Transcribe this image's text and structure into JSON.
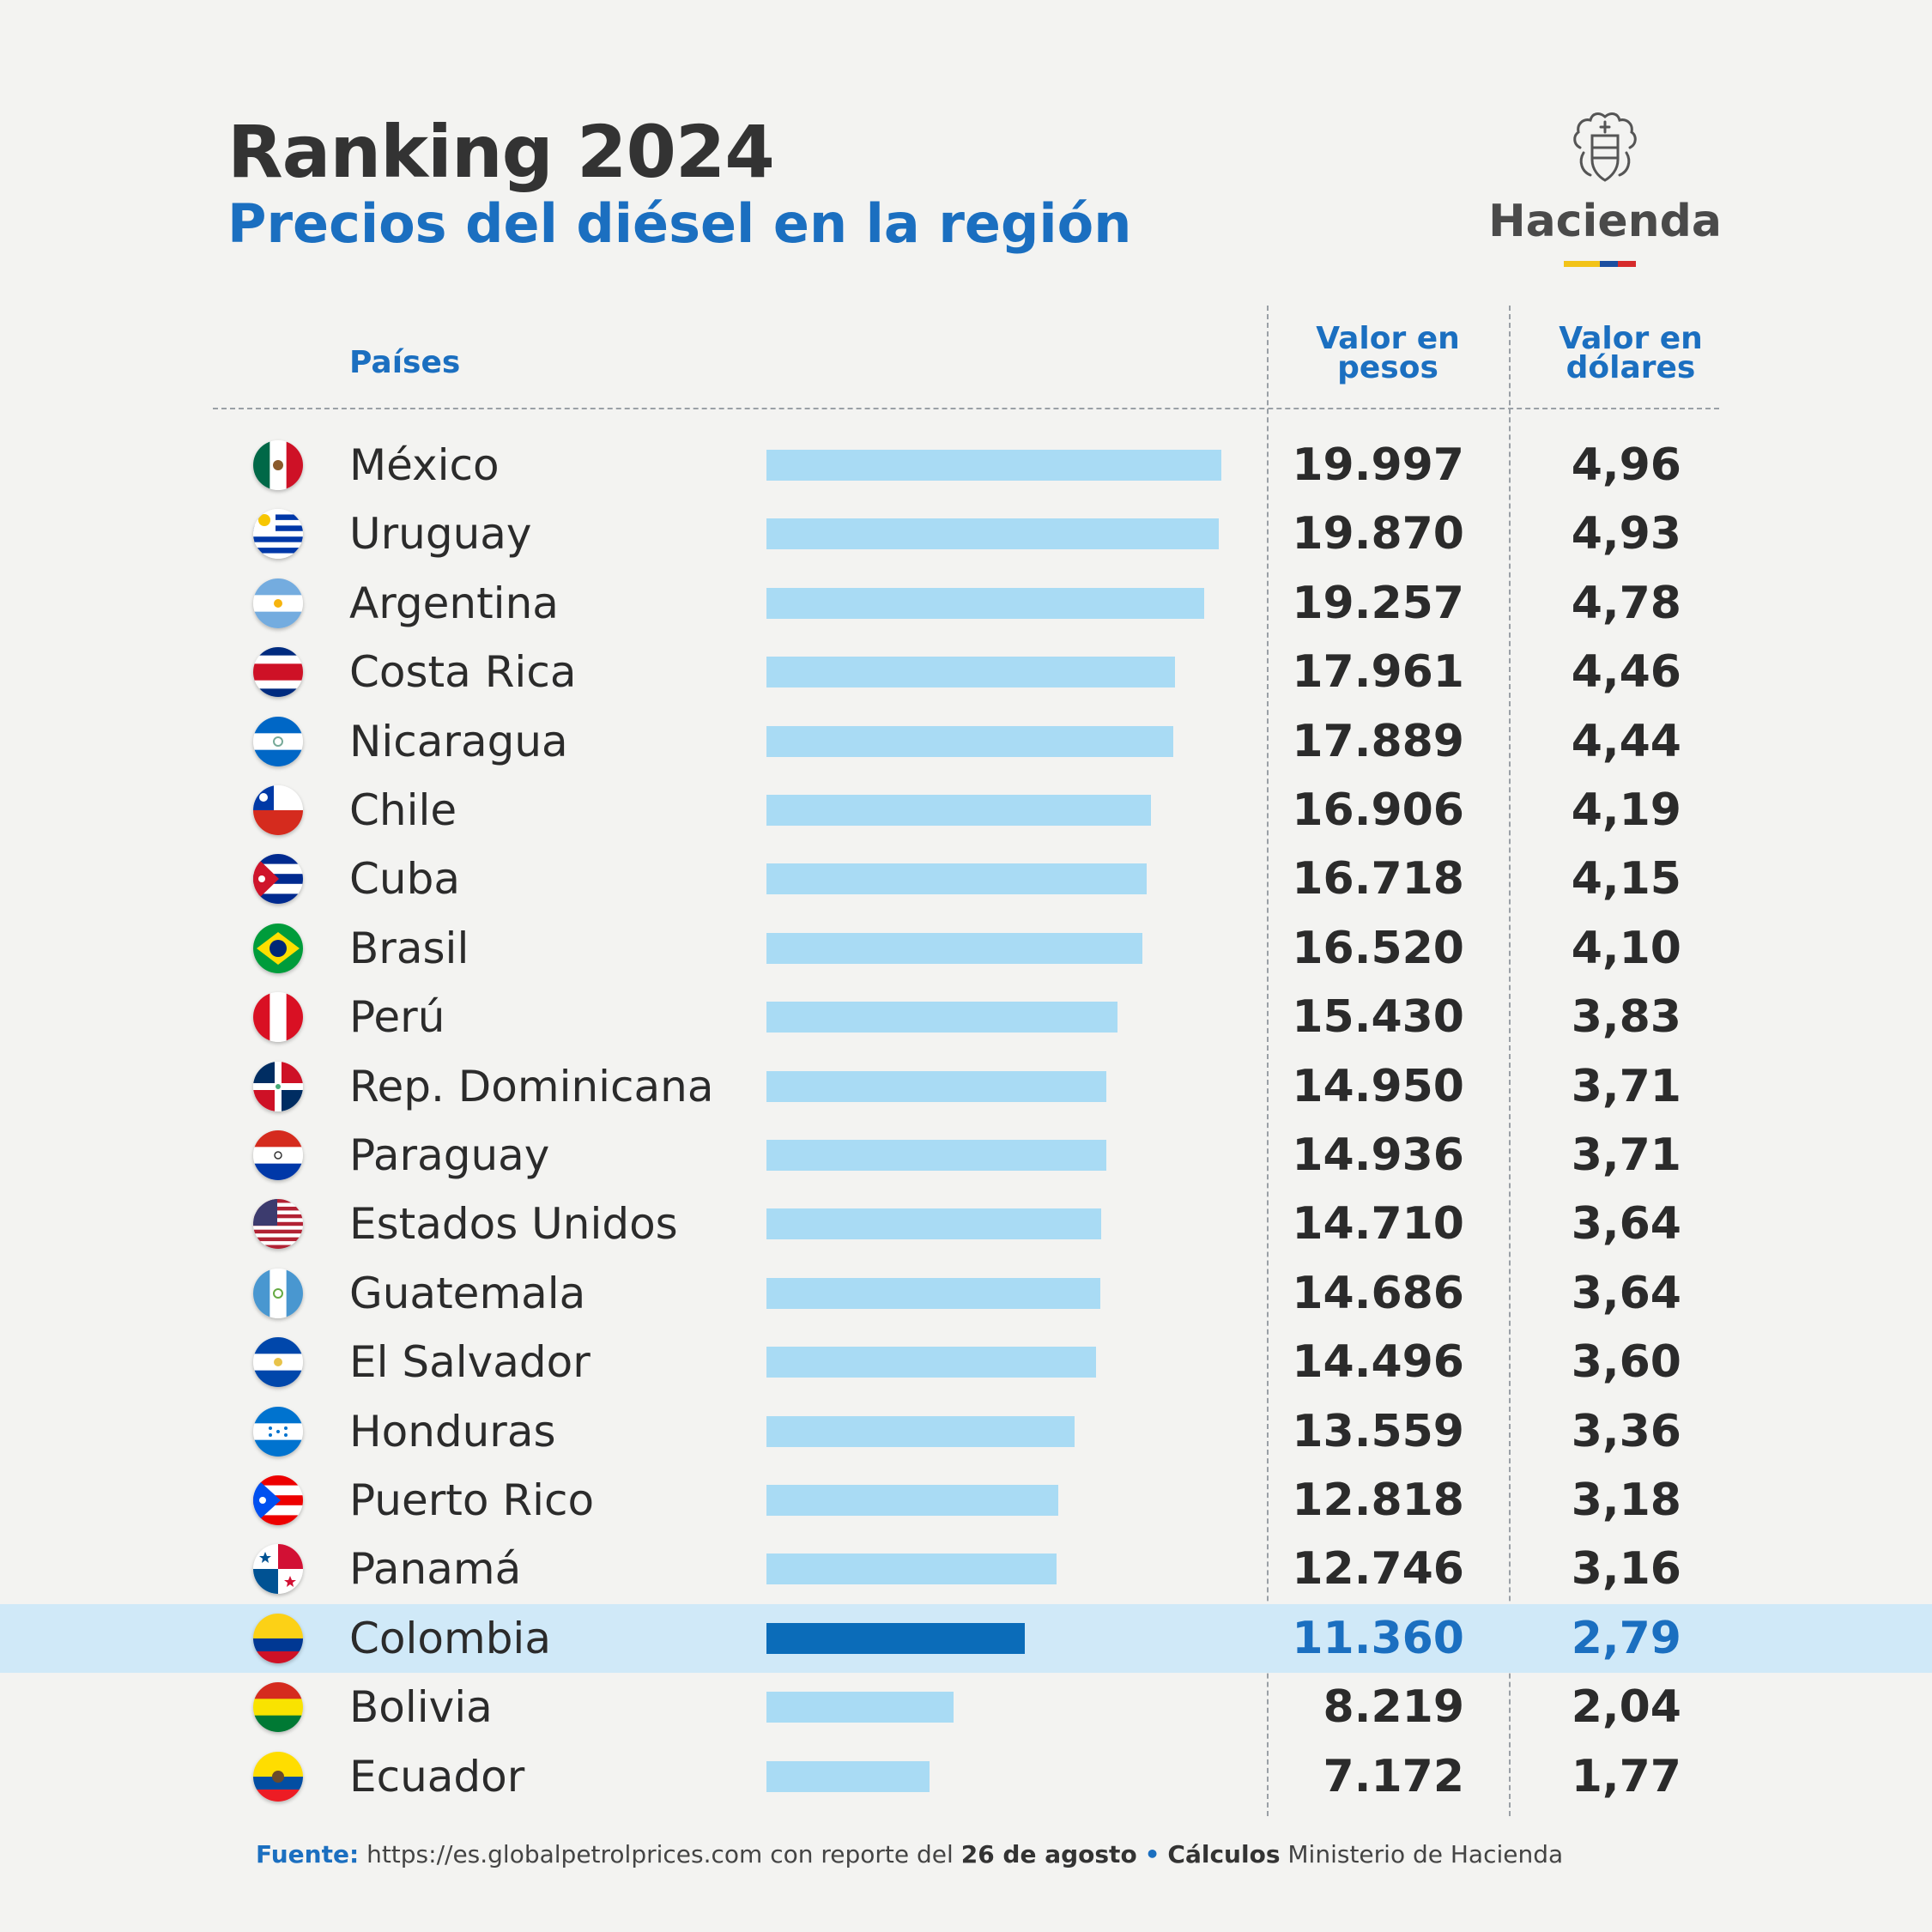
{
  "header": {
    "title": "Ranking 2024",
    "subtitle": "Precios del diésel en la región"
  },
  "logo": {
    "text": "Hacienda",
    "emblem_icon": "coat-of-arms-icon",
    "flag_colors": [
      "#f2c318",
      "#1b4ea0",
      "#d62b2b"
    ]
  },
  "columns": {
    "countries": "Países",
    "pesos_line1": "Valor en",
    "pesos_line2": "pesos",
    "dollars_line1": "Valor en",
    "dollars_line2": "dólares"
  },
  "colors": {
    "bar": "#a9dbf4",
    "bar_highlight": "#0b6cb9",
    "row_highlight": "#d0e9f8",
    "accent": "#1b6fc0"
  },
  "chart_data": {
    "type": "bar",
    "orientation": "horizontal",
    "title": "Ranking 2024",
    "subtitle": "Precios del diésel en la región",
    "categories": [
      "México",
      "Uruguay",
      "Argentina",
      "Costa Rica",
      "Nicaragua",
      "Chile",
      "Cuba",
      "Brasil",
      "Perú",
      "Rep. Dominicana",
      "Paraguay",
      "Estados Unidos",
      "Guatemala",
      "El Salvador",
      "Honduras",
      "Puerto Rico",
      "Panamá",
      "Colombia",
      "Bolivia",
      "Ecuador"
    ],
    "series": [
      {
        "name": "Valor en pesos",
        "values": [
          19997,
          19870,
          19257,
          17961,
          17889,
          16906,
          16718,
          16520,
          15430,
          14950,
          14936,
          14710,
          14686,
          14496,
          13559,
          12818,
          12746,
          11360,
          8219,
          7172
        ]
      },
      {
        "name": "Valor en dólares",
        "values": [
          4.96,
          4.93,
          4.78,
          4.46,
          4.44,
          4.19,
          4.15,
          4.1,
          3.83,
          3.71,
          3.71,
          3.64,
          3.64,
          3.6,
          3.36,
          3.18,
          3.16,
          2.79,
          2.04,
          1.77
        ]
      }
    ],
    "highlight": "Colombia",
    "grid": false,
    "legend": "none"
  },
  "rows": [
    {
      "country": "México",
      "pesos": "19.997",
      "dolares": "4,96",
      "flag": "mexico-flag-icon"
    },
    {
      "country": "Uruguay",
      "pesos": "19.870",
      "dolares": "4,93",
      "flag": "uruguay-flag-icon"
    },
    {
      "country": "Argentina",
      "pesos": "19.257",
      "dolares": "4,78",
      "flag": "argentina-flag-icon"
    },
    {
      "country": "Costa Rica",
      "pesos": "17.961",
      "dolares": "4,46",
      "flag": "costa-rica-flag-icon"
    },
    {
      "country": "Nicaragua",
      "pesos": "17.889",
      "dolares": "4,44",
      "flag": "nicaragua-flag-icon"
    },
    {
      "country": "Chile",
      "pesos": "16.906",
      "dolares": "4,19",
      "flag": "chile-flag-icon"
    },
    {
      "country": "Cuba",
      "pesos": "16.718",
      "dolares": "4,15",
      "flag": "cuba-flag-icon"
    },
    {
      "country": "Brasil",
      "pesos": "16.520",
      "dolares": "4,10",
      "flag": "brazil-flag-icon"
    },
    {
      "country": "Perú",
      "pesos": "15.430",
      "dolares": "3,83",
      "flag": "peru-flag-icon"
    },
    {
      "country": "Rep. Dominicana",
      "pesos": "14.950",
      "dolares": "3,71",
      "flag": "dominican-republic-flag-icon"
    },
    {
      "country": "Paraguay",
      "pesos": "14.936",
      "dolares": "3,71",
      "flag": "paraguay-flag-icon"
    },
    {
      "country": "Estados Unidos",
      "pesos": "14.710",
      "dolares": "3,64",
      "flag": "usa-flag-icon"
    },
    {
      "country": "Guatemala",
      "pesos": "14.686",
      "dolares": "3,64",
      "flag": "guatemala-flag-icon"
    },
    {
      "country": "El Salvador",
      "pesos": "14.496",
      "dolares": "3,60",
      "flag": "el-salvador-flag-icon"
    },
    {
      "country": "Honduras",
      "pesos": "13.559",
      "dolares": "3,36",
      "flag": "honduras-flag-icon"
    },
    {
      "country": "Puerto Rico",
      "pesos": "12.818",
      "dolares": "3,18",
      "flag": "puerto-rico-flag-icon"
    },
    {
      "country": "Panamá",
      "pesos": "12.746",
      "dolares": "3,16",
      "flag": "panama-flag-icon"
    },
    {
      "country": "Colombia",
      "pesos": "11.360",
      "dolares": "2,79",
      "flag": "colombia-flag-icon"
    },
    {
      "country": "Bolivia",
      "pesos": "8.219",
      "dolares": "2,04",
      "flag": "bolivia-flag-icon"
    },
    {
      "country": "Ecuador",
      "pesos": "7.172",
      "dolares": "1,77",
      "flag": "ecuador-flag-icon"
    }
  ],
  "footer": {
    "source_label": "Fuente:",
    "source_text": "https://es.globalpetrolprices.com con reporte del",
    "date": "26 de agosto",
    "bullet": "•",
    "calc_label": "Cálculos",
    "calc_text": "Ministerio de Hacienda"
  }
}
